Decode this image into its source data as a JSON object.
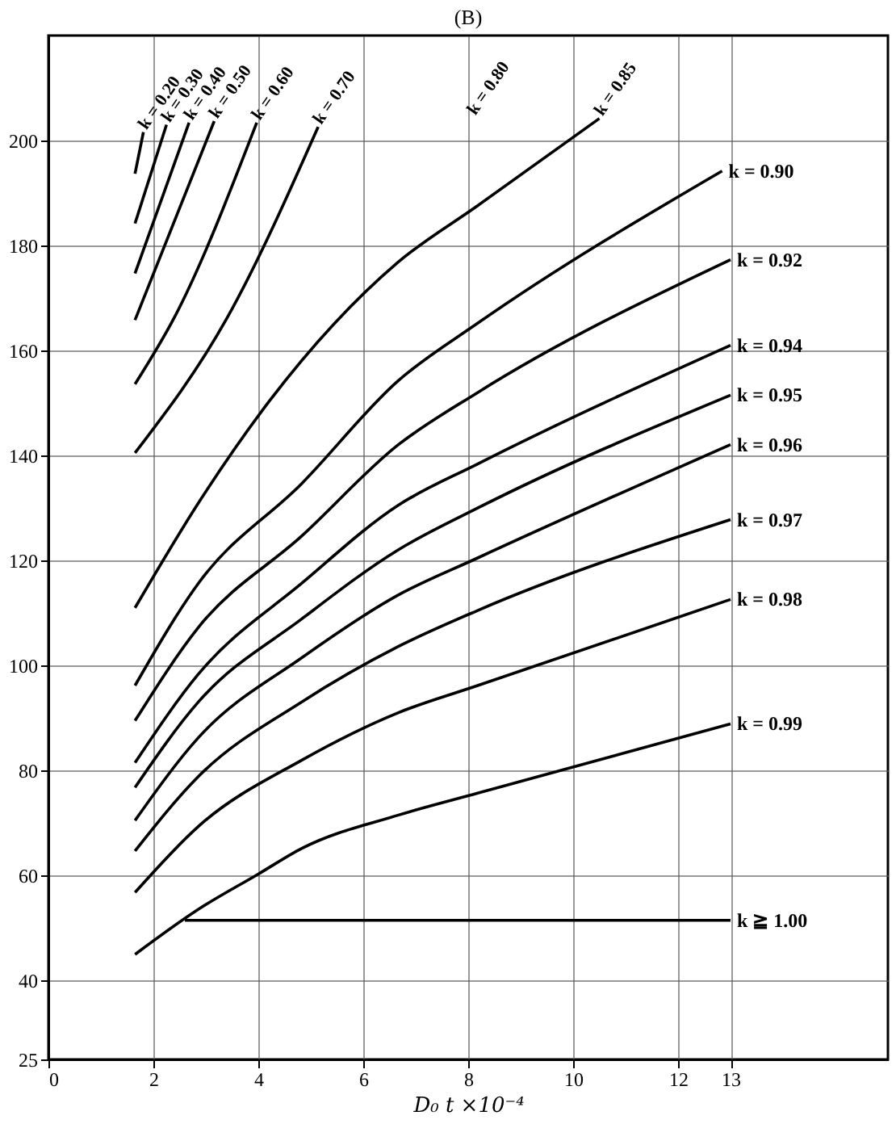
{
  "chart_data": {
    "type": "line",
    "title": "(B)",
    "xlabel": "D₀ t ×10⁻⁴",
    "xlim": [
      0,
      16
    ],
    "xticks": [
      0,
      2,
      4,
      6,
      8,
      10,
      12,
      13
    ],
    "ylim": [
      25,
      220
    ],
    "yticks": [
      25,
      40,
      60,
      80,
      100,
      120,
      140,
      160,
      180,
      200
    ],
    "grid": true,
    "legend": false,
    "marker": "none",
    "line_style": "solid",
    "series": [
      {
        "name": "k = 0.20",
        "color": "#000000",
        "x": [
          1.65,
          1.81
        ],
        "values": [
          193.7,
          201.6
        ]
      },
      {
        "name": "k = 0.30",
        "color": "#000000",
        "x": [
          1.65,
          2.25
        ],
        "values": [
          184.2,
          203
        ]
      },
      {
        "name": "k = 0.40",
        "color": "#000000",
        "x": [
          1.65,
          2.68
        ],
        "values": [
          174.7,
          203.4
        ]
      },
      {
        "name": "k = 0.50",
        "color": "#000000",
        "x": [
          1.65,
          3.16
        ],
        "values": [
          165.8,
          203.7
        ]
      },
      {
        "name": "k = 0.60",
        "color": "#000000",
        "x": [
          1.65,
          2.4,
          3.97
        ],
        "values": [
          153.6,
          166.3,
          203.4
        ]
      },
      {
        "name": "k = 0.70",
        "color": "#000000",
        "x": [
          1.65,
          3.41,
          5.14
        ],
        "values": [
          140.5,
          166.3,
          202.6
        ]
      },
      {
        "name": "k = 0.85",
        "color": "#000000",
        "x": [
          1.65,
          2.86,
          4.22,
          6.66,
          8.18,
          10.5
        ],
        "values": [
          111,
          131,
          150.5,
          176.8,
          187.6,
          204.2
        ]
      },
      {
        "name": "k = 0.90",
        "color": "#000000",
        "x": [
          1.65,
          2.86,
          4.83,
          6.66,
          8.18,
          12.84
        ],
        "values": [
          96.2,
          115.7,
          134.7,
          154.2,
          165.2,
          194.2
        ]
      },
      {
        "name": "k = 0.92",
        "color": "#000000",
        "x": [
          1.65,
          2.86,
          4.83,
          6.66,
          8.18,
          13
        ],
        "values": [
          89.5,
          107.3,
          124.7,
          142,
          152,
          177.3
        ]
      },
      {
        "name": "k = 0.94",
        "color": "#000000",
        "x": [
          1.65,
          2.86,
          4.83,
          6.66,
          8.18,
          13
        ],
        "values": [
          81.5,
          98.4,
          115.7,
          130.5,
          138.4,
          161
        ]
      },
      {
        "name": "k = 0.95",
        "color": "#000000",
        "x": [
          1.65,
          2.86,
          4.83,
          6.66,
          8.18,
          13
        ],
        "values": [
          76.8,
          93.1,
          108.9,
          122,
          130,
          151.5
        ]
      },
      {
        "name": "k = 0.96",
        "color": "#000000",
        "x": [
          1.65,
          2.86,
          4.83,
          6.66,
          8.18,
          13
        ],
        "values": [
          70.5,
          86.3,
          101.5,
          113.4,
          120.5,
          142.1
        ]
      },
      {
        "name": "k = 0.97",
        "color": "#000000",
        "x": [
          1.65,
          2.86,
          4.83,
          6.66,
          8.18,
          13
        ],
        "values": [
          64.7,
          78.9,
          93.1,
          103.6,
          110.5,
          127.8
        ]
      },
      {
        "name": "k = 0.98",
        "color": "#000000",
        "x": [
          1.65,
          2.86,
          4.83,
          6.66,
          8.18,
          13
        ],
        "values": [
          56.8,
          69.4,
          82,
          91,
          96.2,
          112.6
        ]
      },
      {
        "name": "k = 0.99",
        "color": "#000000",
        "x": [
          1.65,
          2.86,
          4,
          4.83,
          6.66,
          8.18,
          13
        ],
        "values": [
          45,
          53.6,
          60.3,
          65.2,
          71.5,
          75.7,
          88.9
        ]
      },
      {
        "name": "k ≧ 1.00",
        "color": "#000000",
        "x": [
          2.6,
          13
        ],
        "values": [
          51.5,
          51.5
        ]
      }
    ],
    "annotations": [
      "k = 0.80"
    ]
  }
}
